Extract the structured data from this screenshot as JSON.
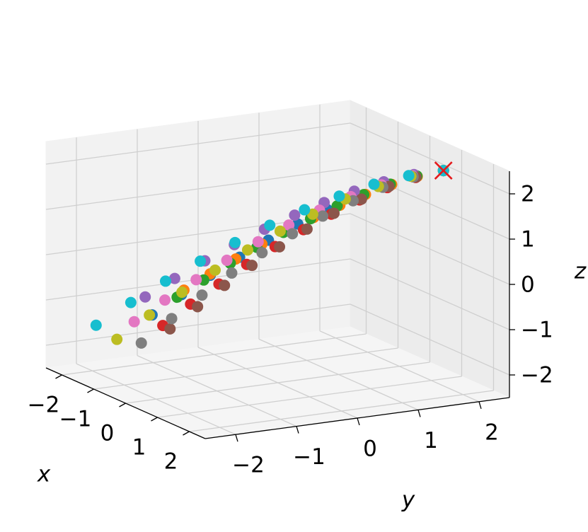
{
  "chart_data": {
    "type": "scatter3d",
    "xlabel": "x",
    "ylabel": "y",
    "zlabel": "z",
    "xlim": [
      -2.5,
      2.5
    ],
    "ylim": [
      -2.5,
      2.5
    ],
    "zlim": [
      -2.5,
      2.5
    ],
    "xticks": [
      {
        "value": -2,
        "label": "−2"
      },
      {
        "value": -1,
        "label": "−1"
      },
      0,
      1,
      2
    ],
    "yticks": [
      {
        "value": -2,
        "label": "−2"
      },
      {
        "value": -1,
        "label": "−1"
      },
      0,
      1,
      2
    ],
    "zticks": [
      {
        "value": -2,
        "label": "−2"
      },
      {
        "value": -1,
        "label": "−1"
      },
      0,
      1,
      2
    ],
    "grid": true,
    "series": [
      {
        "color": "#1f77b4",
        "x": [
          -0.2,
          -0.08,
          0.04,
          0.16,
          0.28,
          0.4,
          0.52,
          0.64,
          0.76,
          0.88,
          1
        ],
        "y": [
          -1.96,
          -1.54,
          -1.13,
          -0.71,
          -0.3,
          0.12,
          0.54,
          0.95,
          1.37,
          1.78,
          2.2
        ],
        "z": [
          -0.71,
          -0.3,
          0.09,
          0.45,
          0.79,
          1.11,
          1.39,
          1.64,
          1.85,
          2.01,
          2.1
        ]
      },
      {
        "color": "#ff7f0e",
        "x": [
          0.8,
          0.82,
          0.84,
          0.86,
          0.88,
          0.9,
          0.92,
          0.94,
          0.96,
          0.98,
          1
        ],
        "y": [
          -1.96,
          -1.54,
          -1.13,
          -0.71,
          -0.3,
          0.12,
          0.54,
          0.95,
          1.37,
          1.78,
          2.2
        ],
        "z": [
          0.15,
          0.44,
          0.7,
          0.96,
          1.19,
          1.41,
          1.61,
          1.78,
          1.93,
          2.04,
          2.1
        ]
      },
      {
        "color": "#2ca02c",
        "x": [
          0.3,
          0.37,
          0.44,
          0.51,
          0.58,
          0.65,
          0.72,
          0.79,
          0.86,
          0.93,
          1
        ],
        "y": [
          -1.81,
          -1.41,
          -1.01,
          -0.61,
          -0.21,
          0.2,
          0.6,
          1.0,
          1.4,
          1.8,
          2.2
        ],
        "z": [
          -0.19,
          0.14,
          0.46,
          0.76,
          1.04,
          1.29,
          1.52,
          1.72,
          1.9,
          2.03,
          2.1
        ]
      },
      {
        "color": "#d62728",
        "x": [
          0.5,
          0.55,
          0.6,
          0.65,
          0.7,
          0.75,
          0.8,
          0.85,
          0.9,
          0.95,
          1
        ],
        "y": [
          -2.15,
          -1.72,
          -1.28,
          -0.85,
          -0.41,
          0.03,
          0.46,
          0.9,
          1.33,
          1.77,
          2.2
        ],
        "z": [
          -0.69,
          -0.28,
          0.1,
          0.47,
          0.8,
          1.11,
          1.39,
          1.64,
          1.85,
          2.01,
          2.1
        ]
      },
      {
        "color": "#9467bd",
        "x": [
          -1.2,
          -0.98,
          -0.76,
          -0.54,
          -0.32,
          -0.1,
          0.12,
          0.34,
          0.56,
          0.78,
          1
        ],
        "y": [
          -1.55,
          -1.18,
          -0.8,
          -0.43,
          -0.05,
          0.33,
          0.7,
          1.08,
          1.45,
          1.83,
          2.2
        ],
        "z": [
          -0.7,
          -0.29,
          0.1,
          0.46,
          0.8,
          1.11,
          1.39,
          1.64,
          1.85,
          2.01,
          2.1
        ]
      },
      {
        "color": "#8c564b",
        "x": [
          0,
          0.1,
          0.2,
          0.3,
          0.4,
          0.5,
          0.6,
          0.7,
          0.8,
          0.9,
          1
        ],
        "y": [
          -1.77,
          -1.37,
          -0.98,
          -0.58,
          -0.18,
          0.22,
          0.61,
          1.01,
          1.41,
          1.8,
          2.2
        ],
        "z": [
          -0.99,
          -0.54,
          -0.11,
          0.29,
          0.66,
          1.01,
          1.32,
          1.59,
          1.83,
          2.0,
          2.1
        ]
      },
      {
        "color": "#e377c2",
        "x": [
          -0.8,
          -0.62,
          -0.44,
          -0.26,
          -0.08,
          0.1,
          0.28,
          0.46,
          0.64,
          0.82,
          1
        ],
        "y": [
          -1.94,
          -1.53,
          -1.11,
          -0.7,
          -0.28,
          0.13,
          0.54,
          0.96,
          1.37,
          1.79,
          2.2
        ],
        "z": [
          -1.05,
          -0.59,
          -0.16,
          0.25,
          0.64,
          0.99,
          1.3,
          1.58,
          1.82,
          2.0,
          2.1
        ]
      },
      {
        "color": "#7f7f7f",
        "x": [
          -0.5,
          -0.35,
          -0.2,
          -0.05,
          0.1,
          0.25,
          0.4,
          0.55,
          0.7,
          0.85,
          1
        ],
        "y": [
          -1.98,
          -1.56,
          -1.14,
          -0.73,
          -0.31,
          0.11,
          0.53,
          0.95,
          1.36,
          1.78,
          2.2
        ],
        "z": [
          -1.42,
          -0.91,
          -0.42,
          0.04,
          0.46,
          0.85,
          1.21,
          1.52,
          1.79,
          1.99,
          2.1
        ]
      },
      {
        "color": "#bcbd22",
        "x": [
          -1,
          -0.8,
          -0.6,
          -0.4,
          -0.2,
          0,
          0.2,
          0.4,
          0.6,
          0.8,
          1
        ],
        "y": [
          -2.12,
          -1.69,
          -1.26,
          -0.82,
          -0.39,
          0.04,
          0.47,
          0.9,
          1.34,
          1.77,
          2.2
        ],
        "z": [
          -1.47,
          -0.95,
          -0.46,
          0.01,
          0.44,
          0.84,
          1.2,
          1.52,
          1.78,
          1.99,
          2.1
        ]
      },
      {
        "color": "#17becf",
        "x": [
          -1.5,
          -1.25,
          -1,
          -0.75,
          -0.5,
          -0.25,
          0,
          0.25,
          0.5,
          0.75,
          1
        ],
        "y": [
          -2.2,
          -1.76,
          -1.32,
          -0.88,
          -0.44,
          0,
          0.44,
          0.88,
          1.32,
          1.76,
          2.2
        ],
        "z": [
          -1.3,
          -0.8,
          -0.33,
          0.11,
          0.52,
          0.9,
          1.24,
          1.54,
          1.8,
          1.99,
          2.1
        ]
      }
    ],
    "target": {
      "x": 1,
      "y": 2.2,
      "z": 2.1,
      "color": "#e41a1c"
    }
  }
}
